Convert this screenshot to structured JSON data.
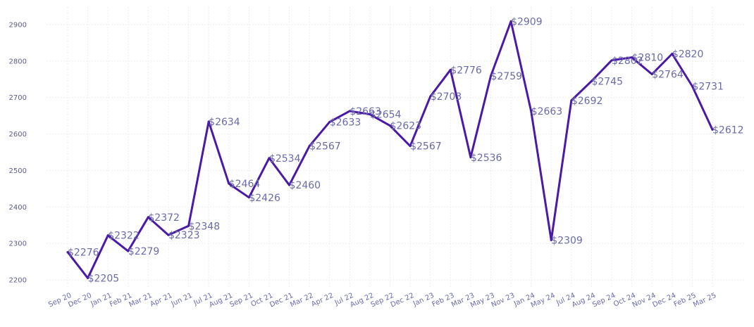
{
  "chart_data": {
    "type": "line",
    "title": "",
    "xlabel": "",
    "ylabel": "",
    "ylim": [
      2180,
      2950
    ],
    "y_ticks": [
      2200,
      2300,
      2400,
      2500,
      2600,
      2700,
      2800,
      2900
    ],
    "grid": true,
    "line_color": "#4a1aa6",
    "label_color": "#6a6aa8",
    "label_prefix": "$",
    "categories": [
      "Sep 20",
      "Dec 20",
      "Jan 21",
      "Feb 21",
      "Mar 21",
      "Apr 21",
      "Jun 21",
      "Jul 21",
      "Aug 21",
      "Sep 21",
      "Oct 21",
      "Dec 21",
      "Mar 22",
      "Apr 22",
      "Jul 22",
      "Aug 22",
      "Sep 22",
      "Dec 22",
      "Jan 23",
      "Feb 23",
      "Mar 23",
      "May 23",
      "Nov 23",
      "Jan 24",
      "May 24",
      "Jul 24",
      "Aug 24",
      "Sep 24",
      "Oct 24",
      "Nov 24",
      "Dec 24",
      "Feb 25",
      "Mar 25"
    ],
    "values": [
      2276,
      2205,
      2322,
      2279,
      2372,
      2323,
      2348,
      2634,
      2464,
      2426,
      2534,
      2460,
      2567,
      2633,
      2663,
      2654,
      2623,
      2567,
      2703,
      2776,
      2536,
      2759,
      2909,
      2663,
      2309,
      2692,
      2745,
      2802,
      2810,
      2764,
      2820,
      2731,
      2612
    ]
  }
}
